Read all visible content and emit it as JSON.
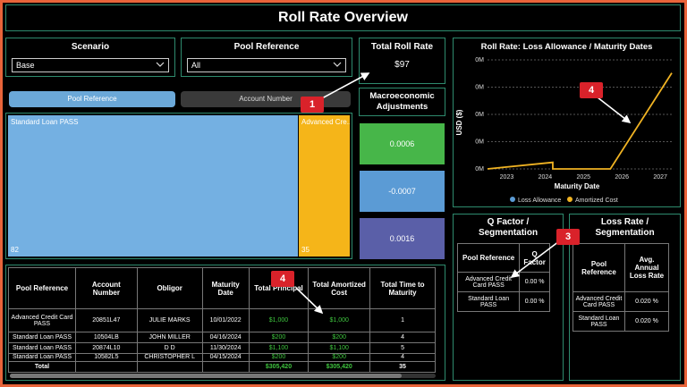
{
  "page": {
    "title": "Roll Rate Overview"
  },
  "scenario": {
    "label": "Scenario",
    "value": "Base"
  },
  "pool_ref_filter": {
    "label": "Pool Reference",
    "value": "All"
  },
  "total_roll_rate": {
    "label": "Total Roll Rate",
    "value": "$97"
  },
  "toggles": {
    "pool_reference": "Pool Reference",
    "account_number": "Account Number"
  },
  "treemap": {
    "tile1": {
      "label": "Standard Loan PASS",
      "count": "82"
    },
    "tile2": {
      "label": "Advanced Cre...",
      "count": "35"
    }
  },
  "macro": {
    "label": "Macroeconomic Adjustments",
    "values": [
      "0.0006",
      "-0.0007",
      "0.0016"
    ],
    "colors": [
      "#47b649",
      "#5b9bd5",
      "#5a5fa8"
    ]
  },
  "loans_table": {
    "headers": [
      "Pool Reference",
      "Account Number",
      "Obligor",
      "Maturity Date",
      "Total Principal",
      "Total Amortized Cost",
      "Total Time to Maturity"
    ],
    "rows": [
      [
        "Advanced Credit Card PASS",
        "20851L47",
        "JULIE MARKS",
        "10/01/2022",
        "$1,000",
        "$1,000",
        "1"
      ],
      [
        "Standard Loan PASS",
        "10504LB",
        "JOHN MILLER",
        "04/16/2024",
        "$200",
        "$200",
        "4"
      ],
      [
        "Standard Loan PASS",
        "20874L10",
        "D D",
        "11/30/2024",
        "$1,100",
        "$1,100",
        "5"
      ],
      [
        "Standard Loan PASS",
        "10582L5",
        "CHRISTOPHER L",
        "04/15/2024",
        "$200",
        "$200",
        "4"
      ]
    ],
    "total": {
      "label": "Total",
      "principal": "$305,420",
      "amortized": "$305,420",
      "time": "35"
    }
  },
  "rr_chart": {
    "title": "Roll Rate: Loss Allowance / Maturity Dates",
    "legend": [
      "Loss Allowance",
      "Amortized Cost"
    ],
    "colors": [
      "#5b9bd5",
      "#f0b323"
    ],
    "xlabel": "Maturity Date",
    "ylabel": "USD ($)"
  },
  "chart_data": {
    "type": "line",
    "title": "Roll Rate: Loss Allowance / Maturity Dates",
    "xlabel": "Maturity Date",
    "ylabel": "USD ($)",
    "x_ticks": [
      "2023",
      "2024",
      "2025",
      "2026",
      "2027"
    ],
    "y_ticks": [
      "0M",
      "0M",
      "0M",
      "0M",
      "0M"
    ],
    "series": [
      {
        "name": "Amortized Cost",
        "x": [
          2022.5,
          2024.2,
          2024.2,
          2025.7,
          2027.3
        ],
        "y": [
          0.0,
          0.06,
          0.0,
          0.0,
          0.88
        ]
      },
      {
        "name": "Loss Allowance",
        "x": [],
        "y": []
      }
    ],
    "ylim": [
      0,
      1
    ],
    "xlim": [
      2022.5,
      2027.3
    ],
    "legend": "bottom"
  },
  "qfactor": {
    "title": "Q Factor / Segmentation",
    "headers": [
      "Pool Reference",
      "Q Factor"
    ],
    "rows": [
      [
        "Advanced Credit Card PASS",
        "0.00 %"
      ],
      [
        "Standard Loan PASS",
        "0.00 %"
      ]
    ]
  },
  "lossrate": {
    "title": "Loss Rate / Segmentation",
    "headers": [
      "Pool Reference",
      "Avg. Annual Loss Rate"
    ],
    "rows": [
      [
        "Advanced Credit Card PASS",
        "0.020 %"
      ],
      [
        "Standard Loan PASS",
        "0.020 %"
      ]
    ]
  },
  "callouts": [
    "1",
    "4",
    "4",
    "3"
  ]
}
